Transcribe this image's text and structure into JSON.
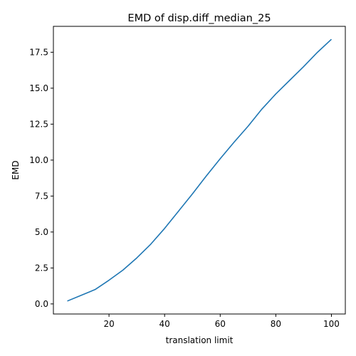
{
  "chart_data": {
    "type": "line",
    "title": "EMD of disp.diff_median_25",
    "xlabel": "translation limit",
    "ylabel": "EMD",
    "xlim": [
      0,
      105
    ],
    "ylim": [
      -0.7,
      19.3
    ],
    "xticks": [
      20,
      40,
      60,
      80,
      100
    ],
    "xtick_labels": [
      "20",
      "40",
      "60",
      "80",
      "100"
    ],
    "yticks": [
      0.0,
      2.5,
      5.0,
      7.5,
      10.0,
      12.5,
      15.0,
      17.5
    ],
    "ytick_labels": [
      "0.0",
      "2.5",
      "5.0",
      "7.5",
      "10.0",
      "12.5",
      "15.0",
      "17.5"
    ],
    "grid": false,
    "legend": "none",
    "series": [
      {
        "color": "#1f77b4",
        "x": [
          5,
          10,
          15,
          20,
          25,
          30,
          35,
          40,
          45,
          50,
          55,
          60,
          65,
          70,
          75,
          80,
          85,
          90,
          95,
          100
        ],
        "values": [
          0.2,
          0.6,
          1.0,
          1.65,
          2.35,
          3.2,
          4.15,
          5.25,
          6.45,
          7.65,
          8.9,
          10.1,
          11.25,
          12.35,
          13.55,
          14.6,
          15.55,
          16.5,
          17.5,
          18.4
        ]
      }
    ]
  }
}
